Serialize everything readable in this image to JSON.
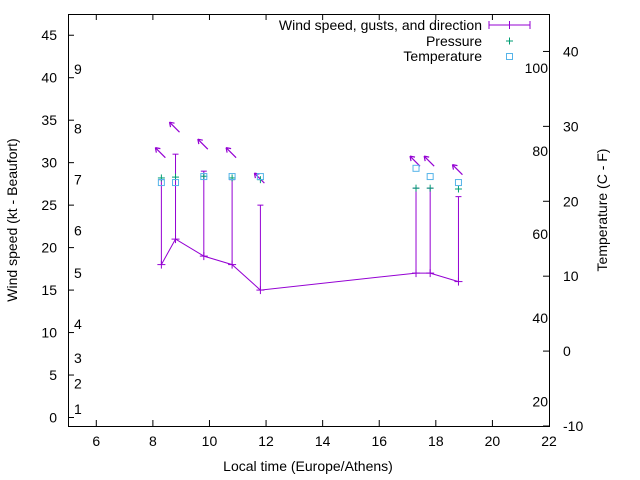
{
  "chart_data": {
    "type": "line",
    "xlabel": "Local time (Europe/Athens)",
    "ylabel": "Wind speed (kt - Beaufort)",
    "y2label": "Temperature (C - F)",
    "xlim": [
      5,
      22
    ],
    "ylim": [
      -1,
      47.5
    ],
    "y2lim": [
      -10,
      45
    ],
    "x_ticks": [
      6,
      8,
      10,
      12,
      14,
      16,
      18,
      20,
      22
    ],
    "y_ticks": [
      0,
      5,
      10,
      15,
      20,
      25,
      30,
      35,
      40,
      45
    ],
    "y2_ticks": [
      -10,
      0,
      10,
      20,
      30,
      40
    ],
    "beaufort_labels": [
      {
        "label": "1",
        "y": 1
      },
      {
        "label": "2",
        "y": 4
      },
      {
        "label": "3",
        "y": 7
      },
      {
        "label": "4",
        "y": 11
      },
      {
        "label": "5",
        "y": 17
      },
      {
        "label": "6",
        "y": 22
      },
      {
        "label": "7",
        "y": 28
      },
      {
        "label": "8",
        "y": 34
      },
      {
        "label": "9",
        "y": 41
      }
    ],
    "fahrenheit_labels": [
      {
        "label": "20",
        "c": -6.7
      },
      {
        "label": "40",
        "c": 4.4
      },
      {
        "label": "60",
        "c": 15.6
      },
      {
        "label": "80",
        "c": 26.7
      },
      {
        "label": "100",
        "c": 37.8
      }
    ],
    "legend": {
      "wind": "Wind speed, gusts, and direction",
      "pressure": "Pressure",
      "temperature": "Temperature"
    },
    "colors": {
      "wind": "#9400d3",
      "pressure": "#009e73",
      "temperature": "#56b4e9"
    },
    "series": [
      {
        "name": "Wind speed, gusts, and direction",
        "x": [
          8.3,
          8.8,
          9.8,
          10.8,
          11.8,
          17.3,
          17.8,
          18.8
        ],
        "speed": [
          18,
          21,
          19,
          18,
          15,
          17,
          17,
          16
        ],
        "gusts": [
          28,
          31,
          29,
          28,
          25,
          27,
          27,
          26
        ],
        "direction_deg": [
          135,
          135,
          135,
          135,
          135,
          135,
          135,
          135
        ]
      },
      {
        "name": "Pressure",
        "x": [
          8.3,
          8.8,
          9.8,
          10.8,
          11.8,
          17.3,
          17.8,
          18.8
        ],
        "values": [
          28.2,
          28.3,
          28.4,
          28.2,
          28.0,
          27.0,
          27.0,
          26.9
        ]
      },
      {
        "name": "Temperature",
        "x": [
          8.3,
          8.8,
          9.8,
          10.8,
          11.8,
          17.3,
          17.8,
          18.8
        ],
        "values": [
          22.5,
          22.5,
          23.3,
          23.3,
          23.3,
          24.4,
          23.3,
          22.5
        ]
      }
    ]
  }
}
